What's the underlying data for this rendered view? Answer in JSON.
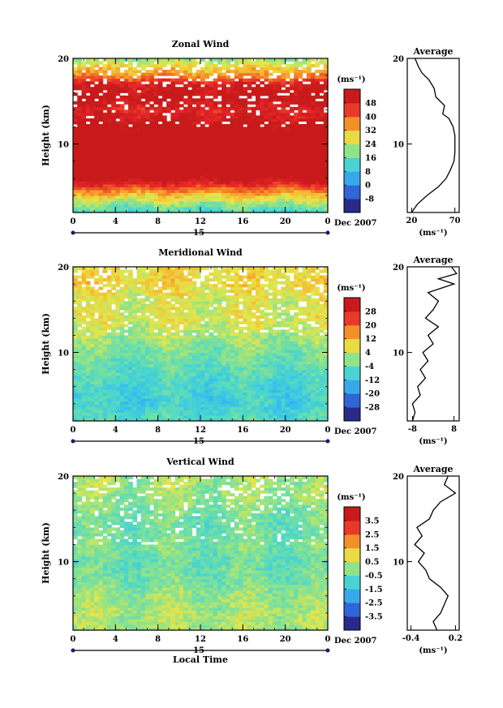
{
  "chart_data": [
    {
      "type": "heatmap",
      "title": "Zonal Wind",
      "xlabel": "",
      "ylabel": "Height (km)",
      "x_ticks": [
        "0",
        "4",
        "8",
        "12",
        "16",
        "20",
        "0"
      ],
      "xlim": [
        0,
        24
      ],
      "y_ticks": [
        "10",
        "20"
      ],
      "ylim": [
        2,
        20
      ],
      "date_day": "15",
      "date_label": "Dec 2007",
      "colorbar": {
        "unit": "(ms⁻¹)",
        "ticks": [
          "-8",
          "0",
          "8",
          "16",
          "24",
          "32",
          "40",
          "48"
        ],
        "range": [
          -12,
          52
        ]
      },
      "field_profile": [
        {
          "h": 2,
          "v": 12
        },
        {
          "h": 3,
          "v": 20
        },
        {
          "h": 4,
          "v": 30
        },
        {
          "h": 5,
          "v": 42
        },
        {
          "h": 6,
          "v": 55
        },
        {
          "h": 8,
          "v": 62
        },
        {
          "h": 10,
          "v": 60
        },
        {
          "h": 12,
          "v": 55
        },
        {
          "h": 14,
          "v": 47
        },
        {
          "h": 15.5,
          "v": 54
        },
        {
          "h": 17,
          "v": 50
        },
        {
          "h": 18,
          "v": 36
        },
        {
          "h": 19,
          "v": 30
        },
        {
          "h": 20,
          "v": 20
        }
      ],
      "average": {
        "title": "Average",
        "x_ticks": [
          "20",
          "70"
        ],
        "xlim": [
          15,
          75
        ],
        "unit": "(ms⁻¹)",
        "profile": [
          {
            "h": 2,
            "v": 20
          },
          {
            "h": 3,
            "v": 27
          },
          {
            "h": 4,
            "v": 38
          },
          {
            "h": 5,
            "v": 51
          },
          {
            "h": 6,
            "v": 60
          },
          {
            "h": 7,
            "v": 65
          },
          {
            "h": 8,
            "v": 69
          },
          {
            "h": 9,
            "v": 70
          },
          {
            "h": 10,
            "v": 70
          },
          {
            "h": 11,
            "v": 70
          },
          {
            "h": 12,
            "v": 68
          },
          {
            "h": 13,
            "v": 63
          },
          {
            "h": 13.5,
            "v": 56
          },
          {
            "h": 14.5,
            "v": 58
          },
          {
            "h": 15.5,
            "v": 48
          },
          {
            "h": 16.5,
            "v": 46
          },
          {
            "h": 17.5,
            "v": 40
          },
          {
            "h": 18.3,
            "v": 32
          },
          {
            "h": 19,
            "v": 28
          },
          {
            "h": 20,
            "v": 24
          }
        ]
      }
    },
    {
      "type": "heatmap",
      "title": "Meridional Wind",
      "xlabel": "",
      "ylabel": "Height (km)",
      "x_ticks": [
        "0",
        "4",
        "8",
        "12",
        "16",
        "20",
        "0"
      ],
      "xlim": [
        0,
        24
      ],
      "y_ticks": [
        "10",
        "20"
      ],
      "ylim": [
        2,
        20
      ],
      "date_day": "15",
      "date_label": "Dec 2007",
      "colorbar": {
        "unit": "(ms⁻¹)",
        "ticks": [
          "-28",
          "-20",
          "-12",
          "-4",
          "4",
          "12",
          "20",
          "28"
        ],
        "range": [
          -32,
          32
        ]
      },
      "field_profile": [
        {
          "h": 2,
          "v": -6
        },
        {
          "h": 4,
          "v": -9
        },
        {
          "h": 6,
          "v": -8
        },
        {
          "h": 8,
          "v": -5
        },
        {
          "h": 10,
          "v": -2
        },
        {
          "h": 12,
          "v": 2
        },
        {
          "h": 14,
          "v": 6
        },
        {
          "h": 16,
          "v": 5
        },
        {
          "h": 18,
          "v": 9
        },
        {
          "h": 20,
          "v": 8
        }
      ],
      "average": {
        "title": "Average",
        "x_ticks": [
          "-8",
          "8"
        ],
        "xlim": [
          -10,
          10
        ],
        "unit": "(ms⁻¹)",
        "profile": [
          {
            "h": 2,
            "v": -8
          },
          {
            "h": 3,
            "v": -7
          },
          {
            "h": 4,
            "v": -8
          },
          {
            "h": 5,
            "v": -5
          },
          {
            "h": 6,
            "v": -6
          },
          {
            "h": 7,
            "v": -3
          },
          {
            "h": 8,
            "v": -5
          },
          {
            "h": 9,
            "v": -2
          },
          {
            "h": 10,
            "v": -4
          },
          {
            "h": 11,
            "v": 0
          },
          {
            "h": 12,
            "v": -2
          },
          {
            "h": 13,
            "v": 2
          },
          {
            "h": 14,
            "v": -3
          },
          {
            "h": 15,
            "v": 0
          },
          {
            "h": 16,
            "v": 2
          },
          {
            "h": 17,
            "v": -2
          },
          {
            "h": 18,
            "v": 8
          },
          {
            "h": 18.6,
            "v": 2
          },
          {
            "h": 19.2,
            "v": 9
          },
          {
            "h": 20,
            "v": 7
          }
        ]
      }
    },
    {
      "type": "heatmap",
      "title": "Vertical Wind",
      "xlabel": "Local Time",
      "ylabel": "Height (km)",
      "x_ticks": [
        "0",
        "4",
        "8",
        "12",
        "16",
        "20",
        "0"
      ],
      "xlim": [
        0,
        24
      ],
      "y_ticks": [
        "10",
        "20"
      ],
      "ylim": [
        2,
        20
      ],
      "date_day": "15",
      "date_label": "Dec 2007",
      "colorbar": {
        "unit": "(ms⁻¹)",
        "ticks": [
          "-3.5",
          "-2.5",
          "-1.5",
          "-0.5",
          "0.5",
          "1.5",
          "2.5",
          "3.5"
        ],
        "range": [
          -4,
          4
        ]
      },
      "field_profile": [
        {
          "h": 2,
          "v": 0.2
        },
        {
          "h": 4,
          "v": 0.3
        },
        {
          "h": 6,
          "v": 0.1
        },
        {
          "h": 8,
          "v": -0.3
        },
        {
          "h": 10,
          "v": -0.5
        },
        {
          "h": 12,
          "v": -0.2
        },
        {
          "h": 14,
          "v": -0.4
        },
        {
          "h": 16,
          "v": -0.2
        },
        {
          "h": 18,
          "v": 0.1
        },
        {
          "h": 20,
          "v": 0.2
        }
      ],
      "average": {
        "title": "Average",
        "x_ticks": [
          "-0.4",
          "0.2"
        ],
        "xlim": [
          -0.45,
          0.25
        ],
        "unit": "(ms⁻¹)",
        "profile": [
          {
            "h": 2,
            "v": -0.05
          },
          {
            "h": 3,
            "v": -0.1
          },
          {
            "h": 4,
            "v": 0.0
          },
          {
            "h": 5,
            "v": 0.05
          },
          {
            "h": 6,
            "v": 0.1
          },
          {
            "h": 7,
            "v": 0.0
          },
          {
            "h": 8,
            "v": -0.15
          },
          {
            "h": 9,
            "v": -0.2
          },
          {
            "h": 10,
            "v": -0.3
          },
          {
            "h": 11,
            "v": -0.22
          },
          {
            "h": 12,
            "v": -0.35
          },
          {
            "h": 13,
            "v": -0.25
          },
          {
            "h": 14,
            "v": -0.32
          },
          {
            "h": 15,
            "v": -0.15
          },
          {
            "h": 16,
            "v": -0.1
          },
          {
            "h": 17,
            "v": 0.0
          },
          {
            "h": 18,
            "v": 0.2
          },
          {
            "h": 19,
            "v": 0.05
          },
          {
            "h": 20,
            "v": 0.1
          }
        ]
      }
    }
  ]
}
